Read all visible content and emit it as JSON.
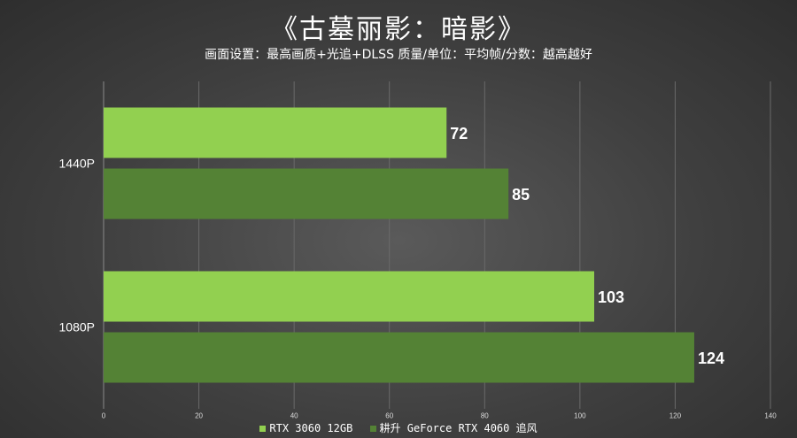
{
  "chart_data": {
    "type": "bar",
    "orientation": "horizontal",
    "title": "《古墓丽影：暗影》",
    "subtitle": "画面设置：最高画质+光追+DLSS 质量/单位：平均帧/分数：越高越好",
    "categories": [
      "1440P",
      "1080P"
    ],
    "series": [
      {
        "name": "RTX 3060 12GB",
        "color": "#92d050",
        "values": [
          72,
          103
        ]
      },
      {
        "name": "耕升 GeForce RTX 4060 追风",
        "color": "#548235",
        "values": [
          85,
          124
        ]
      }
    ],
    "xlim": [
      0,
      140
    ],
    "xticks": [
      "0",
      "20",
      "40",
      "60",
      "80",
      "100",
      "120",
      "140"
    ],
    "grid": true,
    "legend_position": "bottom"
  }
}
